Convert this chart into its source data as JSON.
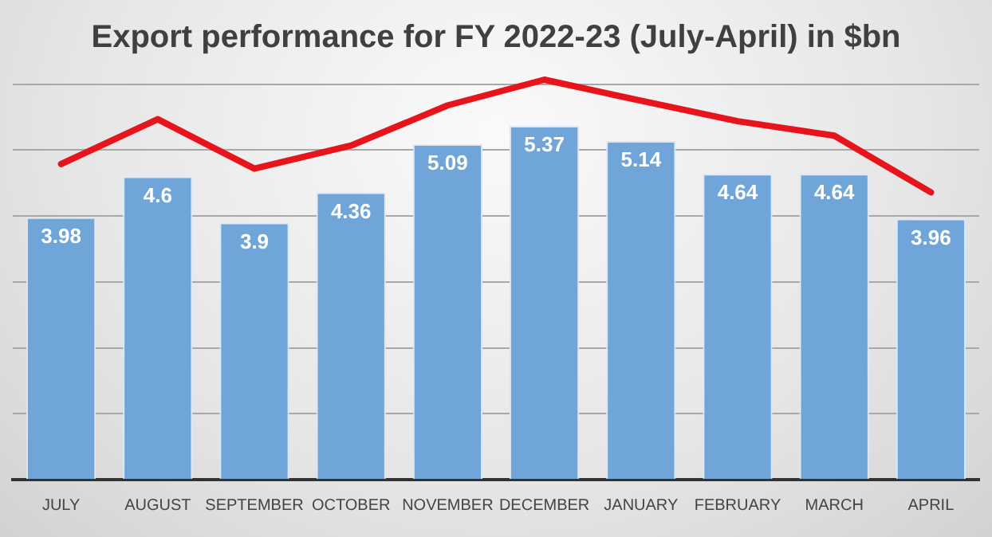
{
  "chart_data": {
    "type": "bar",
    "title": "Export performance for FY 2022-23 (July-April) in $bn",
    "categories": [
      "JULY",
      "AUGUST",
      "SEPTEMBER",
      "OCTOBER",
      "NOVEMBER",
      "DECEMBER",
      "JANUARY",
      "FEBRUARY",
      "MARCH",
      "APRIL"
    ],
    "series": [
      {
        "color": "#6fa5d8",
        "values": [
          3.98,
          4.6,
          3.9,
          4.36,
          5.09,
          5.37,
          5.14,
          4.64,
          4.64,
          3.96
        ],
        "value_labels": [
          "3.98",
          "4.6",
          "3.9",
          "4.36",
          "5.09",
          "5.37",
          "5.14",
          "4.64",
          "4.64",
          "3.96"
        ]
      },
      {
        "type": "line",
        "color": "#e8141c",
        "values": [
          4.79,
          5.47,
          4.72,
          5.07,
          5.68,
          6.07,
          5.75,
          5.44,
          5.22,
          4.36
        ]
      }
    ],
    "yticks": [
      {
        "value": 0,
        "label": null
      },
      {
        "value": 1,
        "label": null
      },
      {
        "value": 2,
        "label": null
      },
      {
        "value": 3,
        "label": null
      },
      {
        "value": 4,
        "label": null
      },
      {
        "value": 5,
        "label": null
      },
      {
        "value": 6,
        "label": null
      }
    ],
    "grid": "y",
    "tick_labels": "x",
    "legend": false,
    "marker": "none",
    "line_style": "solid"
  }
}
